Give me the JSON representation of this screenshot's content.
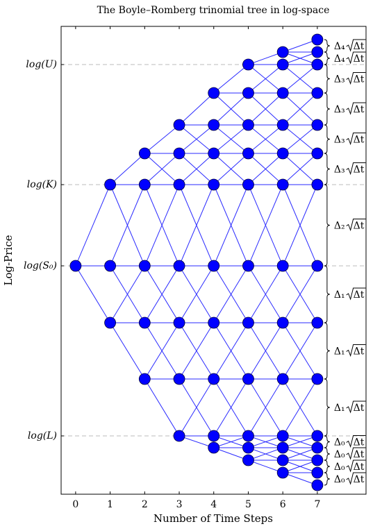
{
  "chart_data": {
    "type": "tree",
    "title": "The Boyle–Romberg trinomial tree in log-space",
    "xlabel": "Number of Time Steps",
    "ylabel": "Log-Price",
    "x": [
      0,
      1,
      2,
      3,
      4,
      5,
      6,
      7
    ],
    "nodes": [
      [
        0
      ],
      [
        1.17,
        0,
        -0.82
      ],
      [
        1.62,
        1.17,
        0,
        -0.82,
        -1.63
      ],
      [
        2.03,
        1.62,
        1.17,
        0,
        -0.82,
        -1.63,
        -2.45
      ],
      [
        2.49,
        2.03,
        1.62,
        1.17,
        0,
        -0.82,
        -1.63,
        -2.45,
        -2.62
      ],
      [
        2.9,
        2.49,
        2.03,
        1.62,
        1.17,
        0,
        -0.82,
        -1.63,
        -2.45,
        -2.62,
        -2.8
      ],
      [
        3.08,
        2.9,
        2.49,
        2.03,
        1.62,
        1.17,
        0,
        -0.82,
        -1.63,
        -2.45,
        -2.62,
        -2.8,
        -2.98
      ],
      [
        3.26,
        3.08,
        2.9,
        2.49,
        2.03,
        1.62,
        1.17,
        0,
        -0.82,
        -1.63,
        -2.45,
        -2.62,
        -2.8,
        -2.98,
        -3.16
      ]
    ],
    "color": "#0000ff",
    "xlim": [
      -0.42,
      8.41
    ],
    "xticks": [
      0,
      1,
      2,
      3,
      4,
      5,
      6,
      7
    ],
    "ylim": [
      -3.29,
      3.45
    ],
    "yticks": [
      {
        "value": 2.9,
        "label": "log(U)"
      },
      {
        "value": 1.17,
        "label": "log(K)"
      },
      {
        "value": 0,
        "label": "log(S₀)"
      },
      {
        "value": -2.45,
        "label": "log(L)"
      }
    ],
    "grid": true,
    "brace_labels": [
      {
        "coef": "Δ₄",
        "radicand": "Δt"
      },
      {
        "coef": "Δ₄",
        "radicand": "Δt"
      },
      {
        "coef": "Δ₃",
        "radicand": "Δt"
      },
      {
        "coef": "Δ₃",
        "radicand": "Δt"
      },
      {
        "coef": "Δ₃",
        "radicand": "Δt"
      },
      {
        "coef": "Δ₃",
        "radicand": "Δt"
      },
      {
        "coef": "Δ₂",
        "radicand": "Δt"
      },
      {
        "coef": "Δ₁",
        "radicand": "Δt"
      },
      {
        "coef": "Δ₁",
        "radicand": "Δt"
      },
      {
        "coef": "Δ₁",
        "radicand": "Δt"
      },
      {
        "coef": "Δ₀",
        "radicand": "Δt"
      },
      {
        "coef": "Δ₀",
        "radicand": "Δt"
      },
      {
        "coef": "Δ₀",
        "radicand": "Δt"
      },
      {
        "coef": "Δ₀",
        "radicand": "Δt"
      }
    ]
  }
}
